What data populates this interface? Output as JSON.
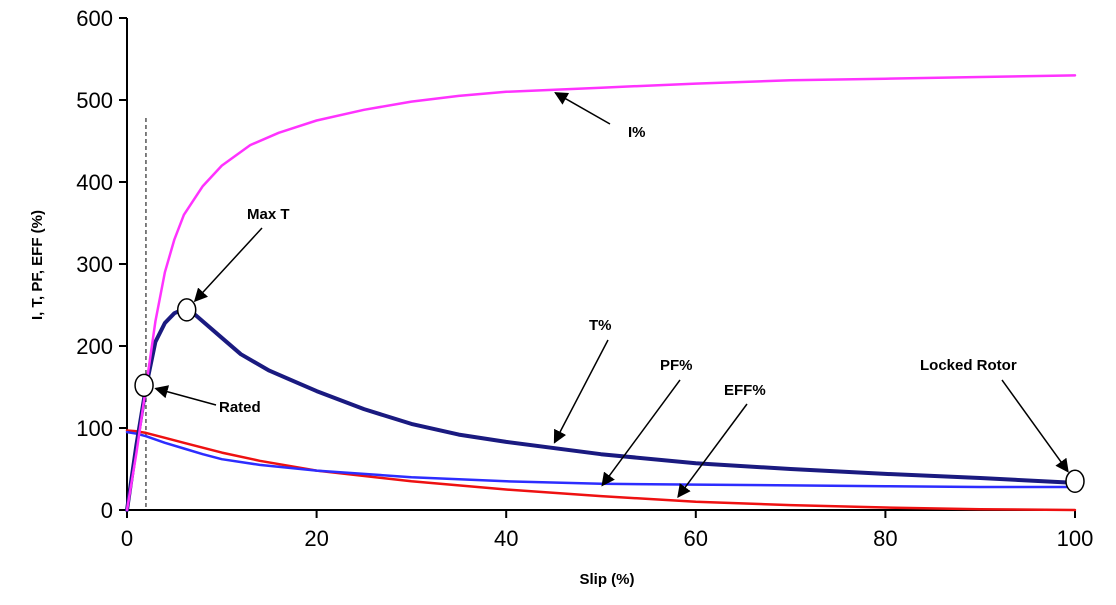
{
  "chart_data": {
    "type": "line",
    "title": "",
    "xlabel": "Slip (%)",
    "ylabel": "I, T, PF, EFF (%)",
    "xlim": [
      0,
      100
    ],
    "ylim": [
      0,
      600
    ],
    "xticks": [
      "0",
      "20",
      "40",
      "60",
      "80",
      "100"
    ],
    "yticks": [
      "0",
      "100",
      "200",
      "300",
      "400",
      "500",
      "600"
    ],
    "grid": false,
    "legend": "none",
    "rated_slip_line": 2,
    "series": [
      {
        "name": "I%",
        "color": "#ff33ff",
        "x": [
          0,
          1,
          2,
          3,
          4,
          5,
          6,
          8,
          10,
          13,
          16,
          20,
          25,
          30,
          35,
          40,
          50,
          60,
          70,
          80,
          90,
          100
        ],
        "y": [
          0,
          70,
          150,
          230,
          290,
          330,
          360,
          395,
          420,
          445,
          460,
          475,
          488,
          498,
          505,
          510,
          515,
          520,
          524,
          526,
          528,
          530
        ]
      },
      {
        "name": "T%",
        "color": "#1a1a80",
        "x": [
          0,
          1,
          2,
          3,
          4,
          5,
          6,
          7,
          8,
          10,
          12,
          15,
          20,
          25,
          30,
          35,
          40,
          50,
          60,
          70,
          80,
          90,
          100
        ],
        "y": [
          0,
          80,
          150,
          205,
          228,
          240,
          245,
          240,
          230,
          210,
          190,
          170,
          145,
          123,
          105,
          92,
          83,
          68,
          57,
          50,
          44,
          39,
          33
        ]
      },
      {
        "name": "PF%",
        "color": "#2d2dff",
        "x": [
          0,
          1,
          2,
          4,
          6,
          8,
          10,
          14,
          20,
          30,
          40,
          50,
          60,
          70,
          80,
          90,
          100
        ],
        "y": [
          95,
          93,
          90,
          82,
          75,
          68,
          62,
          55,
          48,
          40,
          35,
          32,
          31,
          30,
          29,
          28,
          28
        ]
      },
      {
        "name": "EFF%",
        "color": "#ee1111",
        "x": [
          0,
          1,
          2,
          4,
          6,
          8,
          10,
          14,
          20,
          30,
          40,
          50,
          60,
          70,
          80,
          90,
          100
        ],
        "y": [
          97,
          96,
          94,
          88,
          82,
          76,
          70,
          60,
          48,
          35,
          25,
          17,
          10,
          6,
          3,
          1,
          0
        ]
      }
    ],
    "markers": [
      {
        "name": "Rated",
        "x": 1.8,
        "y": 152
      },
      {
        "name": "Max T",
        "x": 6.3,
        "y": 244
      },
      {
        "name": "Locked Rotor",
        "x": 100,
        "y": 35
      }
    ],
    "annotations": [
      {
        "text": "I%",
        "anchor_x": 45,
        "anchor_y": 510
      },
      {
        "text": "Max T",
        "anchor_x": 6.3,
        "anchor_y": 244
      },
      {
        "text": "T%",
        "anchor_x": 45,
        "anchor_y": 80
      },
      {
        "text": "PF%",
        "anchor_x": 50,
        "anchor_y": 28
      },
      {
        "text": "EFF%",
        "anchor_x": 58,
        "anchor_y": 14
      },
      {
        "text": "Rated",
        "anchor_x": 1.8,
        "anchor_y": 152
      },
      {
        "text": "Locked Rotor",
        "anchor_x": 100,
        "anchor_y": 35
      }
    ]
  }
}
